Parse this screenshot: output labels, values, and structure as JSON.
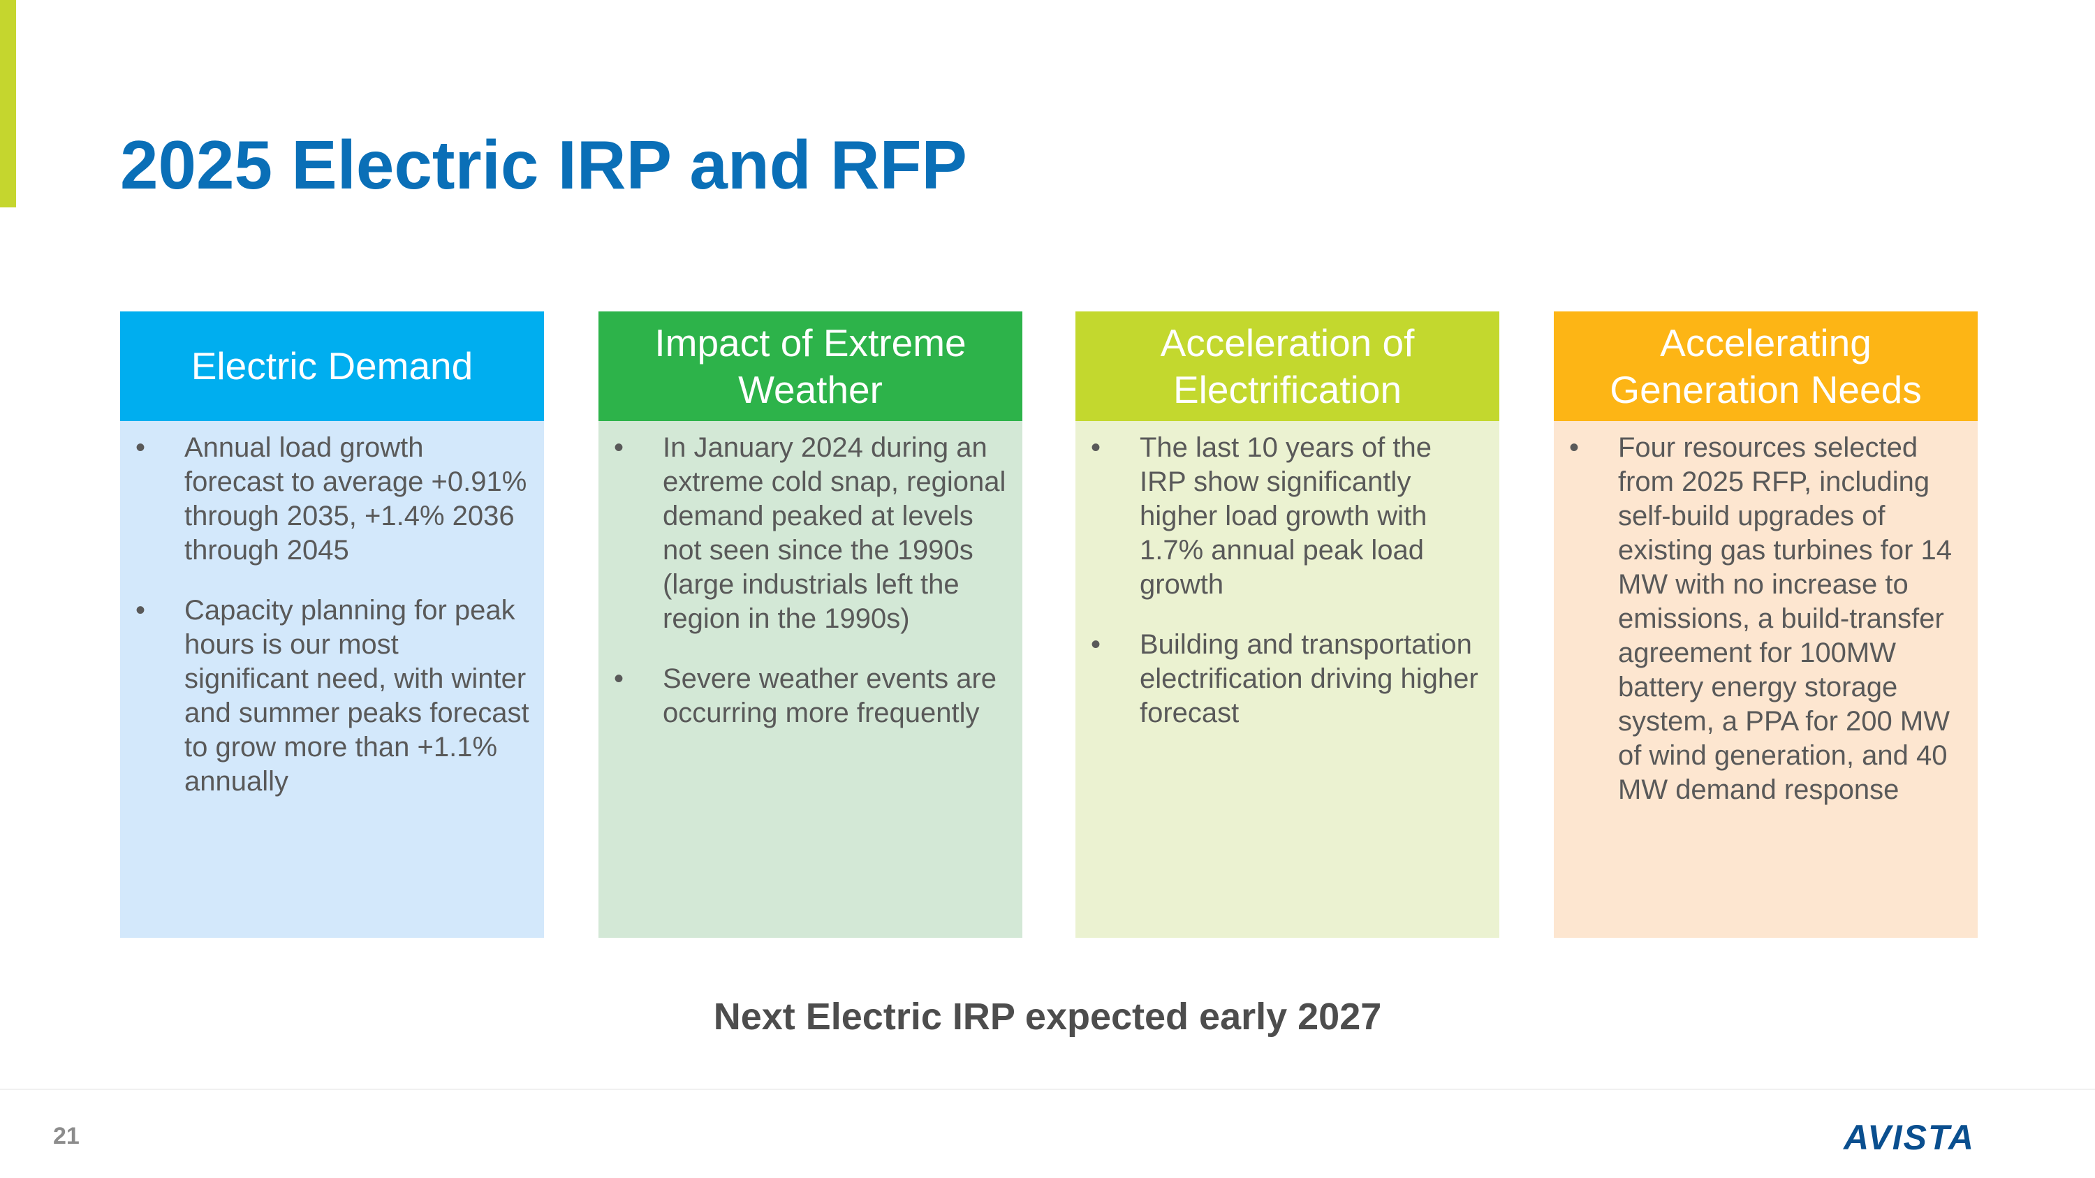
{
  "header": {
    "title": "2025 Electric IRP and RFP"
  },
  "columns": [
    {
      "heading": "Electric Demand",
      "bullets": [
        "Annual load growth forecast to average +0.91% through 2035, +1.4% 2036 through 2045",
        "Capacity planning for peak hours is our most significant need, with winter and summer peaks forecast to grow more than +1.1% annually"
      ]
    },
    {
      "heading": "Impact of Extreme Weather",
      "bullets": [
        "In January 2024 during an extreme cold snap, regional demand peaked at levels not seen since the 1990s (large industrials left the region in the 1990s)",
        "Severe weather events are occurring more frequently"
      ]
    },
    {
      "heading": "Acceleration of Electrification",
      "bullets": [
        "The last 10 years of the IRP show significantly higher load growth with 1.7% annual peak load growth",
        "Building and transportation electrification driving higher forecast"
      ]
    },
    {
      "heading": "Accelerating Generation Needs",
      "bullets": [
        "Four resources selected from 2025 RFP, including self-build upgrades of existing gas turbines for 14 MW with no increase to emissions, a build-transfer agreement for 100MW battery energy storage system, a PPA for 200 MW of wind generation, and 40 MW demand response"
      ]
    }
  ],
  "footer": {
    "note": "Next Electric IRP expected early 2027",
    "page_number": "21",
    "logo": "AVISTA"
  }
}
